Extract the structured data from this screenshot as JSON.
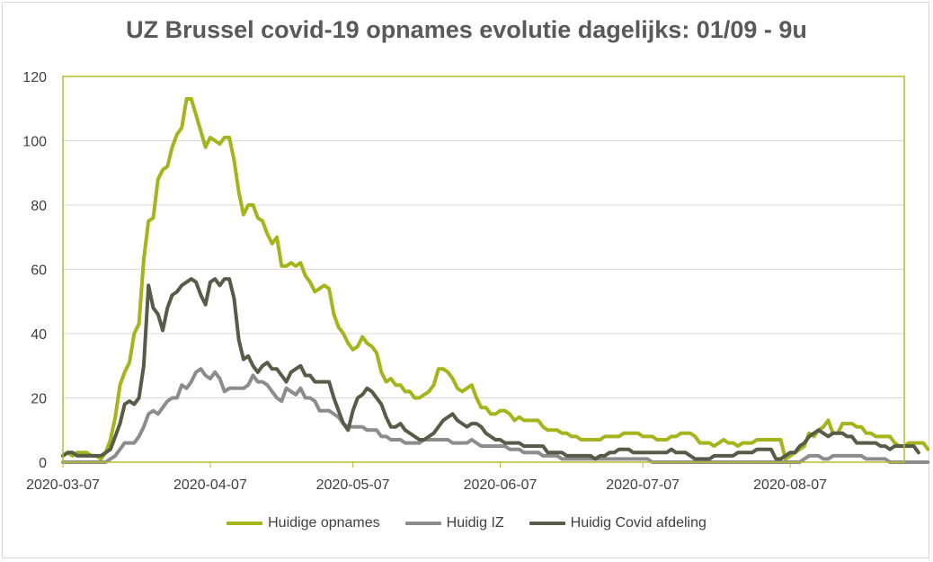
{
  "chart_data": {
    "type": "line",
    "title": "UZ Brussel covid-19 opnames evolutie dagelijks: 01/09 - 9u",
    "xlabel": "",
    "ylabel": "",
    "ylim": [
      0,
      120
    ],
    "yticks": [
      "0",
      "20",
      "40",
      "60",
      "80",
      "100",
      "120"
    ],
    "xticks": [
      "2020-03-07",
      "2020-04-07",
      "2020-05-07",
      "2020-06-07",
      "2020-07-07",
      "2020-08-07"
    ],
    "x_start": "2020-03-07",
    "x_end": "2020-08-31",
    "grid": true,
    "legend_position": "bottom",
    "series": [
      {
        "name": "Huidige opnames",
        "color": "#a5b41a",
        "values": [
          2,
          3,
          2,
          3,
          3,
          3,
          2,
          2,
          1,
          3,
          7,
          14,
          24,
          28,
          31,
          40,
          43,
          63,
          75,
          76,
          88,
          91,
          92,
          98,
          102,
          104,
          113,
          113,
          108,
          103,
          98,
          101,
          100,
          99,
          101,
          101,
          94,
          84,
          77,
          80,
          80,
          76,
          75,
          71,
          68,
          70,
          61,
          61,
          62,
          61,
          62,
          58,
          56,
          53,
          54,
          55,
          54,
          46,
          42,
          40,
          37,
          35,
          36,
          39,
          37,
          36,
          34,
          28,
          25,
          26,
          24,
          24,
          22,
          22,
          20,
          20,
          21,
          22,
          24,
          29,
          29,
          28,
          26,
          23,
          22,
          23,
          24,
          20,
          17,
          17,
          15,
          15,
          16,
          16,
          15,
          13,
          14,
          13,
          13,
          13,
          13,
          11,
          10,
          10,
          10,
          9,
          9,
          8,
          8,
          7,
          7,
          7,
          7,
          7,
          8,
          8,
          8,
          8,
          9,
          9,
          9,
          9,
          8,
          8,
          8,
          7,
          7,
          7,
          8,
          8,
          9,
          9,
          9,
          8,
          6,
          6,
          6,
          5,
          6,
          7,
          6,
          6,
          5,
          6,
          6,
          6,
          7,
          7,
          7,
          7,
          7,
          7,
          1,
          2,
          3,
          4,
          5,
          9,
          8,
          10,
          11,
          13,
          9,
          9,
          12,
          12,
          12,
          11,
          11,
          9,
          9,
          8,
          8,
          8,
          8,
          6,
          5,
          5,
          6,
          6,
          6,
          6,
          4
        ]
      },
      {
        "name": "Huidig IZ",
        "color": "#8c8c8c",
        "values": [
          0,
          0,
          0,
          0,
          0,
          0,
          0,
          0,
          0,
          0,
          1,
          2,
          4,
          6,
          6,
          6,
          8,
          11,
          15,
          16,
          15,
          17,
          19,
          20,
          20,
          24,
          23,
          25,
          28,
          29,
          27,
          26,
          28,
          26,
          22,
          23,
          23,
          23,
          23,
          24,
          27,
          25,
          25,
          24,
          22,
          20,
          19,
          23,
          22,
          21,
          23,
          20,
          20,
          19,
          16,
          16,
          16,
          15,
          14,
          12,
          11,
          11,
          11,
          11,
          10,
          10,
          10,
          8,
          8,
          7,
          7,
          7,
          6,
          6,
          6,
          6,
          7,
          7,
          7,
          7,
          7,
          7,
          6,
          6,
          6,
          6,
          7,
          6,
          5,
          5,
          5,
          5,
          5,
          5,
          4,
          4,
          4,
          3,
          3,
          3,
          3,
          2,
          2,
          2,
          2,
          1,
          1,
          1,
          1,
          1,
          1,
          1,
          1,
          1,
          1,
          1,
          1,
          1,
          1,
          1,
          1,
          1,
          1,
          1,
          0,
          0,
          0,
          0,
          0,
          0,
          0,
          0,
          0,
          0,
          0,
          0,
          0,
          0,
          0,
          0,
          0,
          0,
          0,
          0,
          0,
          0,
          0,
          0,
          0,
          0,
          0,
          0,
          0,
          0,
          0,
          0,
          1,
          2,
          2,
          2,
          1,
          1,
          2,
          2,
          2,
          2,
          2,
          2,
          2,
          1,
          1,
          1,
          1,
          1,
          0,
          0,
          0,
          0,
          0,
          0,
          0,
          0,
          0
        ]
      },
      {
        "name": "Huidig Covid afdeling",
        "color": "#555c47",
        "values": [
          2,
          3,
          3,
          2,
          2,
          2,
          2,
          2,
          2,
          3,
          4,
          8,
          12,
          18,
          19,
          18,
          20,
          30,
          55,
          48,
          46,
          41,
          48,
          52,
          53,
          55,
          56,
          57,
          56,
          52,
          49,
          56,
          57,
          55,
          57,
          57,
          51,
          38,
          32,
          33,
          30,
          28,
          30,
          31,
          29,
          29,
          27,
          25,
          28,
          29,
          30,
          27,
          27,
          25,
          25,
          25,
          25,
          20,
          16,
          12,
          10,
          16,
          20,
          21,
          23,
          22,
          20,
          18,
          14,
          11,
          11,
          12,
          10,
          9,
          8,
          7,
          7,
          8,
          9,
          11,
          13,
          14,
          15,
          13,
          12,
          11,
          12,
          12,
          11,
          9,
          8,
          7,
          7,
          6,
          6,
          6,
          6,
          5,
          5,
          5,
          5,
          5,
          3,
          3,
          3,
          3,
          2,
          2,
          2,
          2,
          2,
          2,
          1,
          2,
          2,
          3,
          3,
          4,
          4,
          4,
          3,
          3,
          3,
          3,
          3,
          3,
          3,
          3,
          4,
          3,
          3,
          3,
          2,
          1,
          1,
          1,
          1,
          2,
          2,
          2,
          2,
          2,
          3,
          3,
          3,
          3,
          4,
          4,
          4,
          4,
          1,
          1,
          2,
          3,
          3,
          5,
          6,
          8,
          9,
          10,
          9,
          8,
          9,
          9,
          9,
          8,
          8,
          6,
          6,
          6,
          6,
          6,
          5,
          5,
          4,
          5,
          5,
          5,
          5,
          5,
          3
        ]
      }
    ]
  }
}
